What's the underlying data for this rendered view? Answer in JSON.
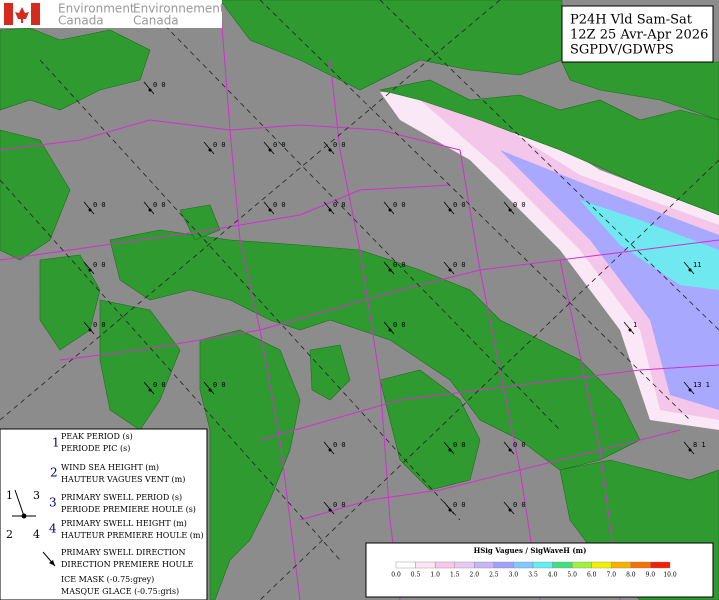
{
  "logo": {
    "english": [
      "Environment",
      "Canada"
    ],
    "french": [
      "Environnement",
      "Canada"
    ]
  },
  "title_box": {
    "lines": [
      "P24H Vld Sam-Sat",
      "12Z 25 Avr-Apr 2026",
      "SGPDV/GDWPS"
    ]
  },
  "legend": {
    "items": [
      {
        "number": "1",
        "lines": [
          "PEAK PERIOD (s)",
          "PERIODE PIC (s)"
        ]
      },
      {
        "number": "2",
        "lines": [
          "WIND SEA HEIGHT (m)",
          "HAUTEUR VAGUES VENT (m)"
        ]
      },
      {
        "number": "3",
        "lines": [
          "PRIMARY SWELL PERIOD (s)",
          "PERIODE PREMIERE HOULE (s)"
        ]
      },
      {
        "number": "4",
        "lines": [
          "PRIMARY SWELL HEIGHT (m)",
          "HAUTEUR PREMIERE HOULE (m)"
        ]
      }
    ],
    "diagram_numbers": [
      "1",
      "3",
      "2",
      "4"
    ],
    "direction": [
      "PRIMARY SWELL DIRECTION",
      "DIRECTION PREMIERE HOULE"
    ],
    "ice_mask": [
      "ICE MASK (-0.75:grey)",
      "MASQUE GLACE (-0.75:gris)"
    ]
  },
  "colorbar": {
    "title": "HSig Vagues / SigWaveH (m)",
    "ticks": [
      "0.0",
      "0.5",
      "1.0",
      "1.5",
      "2.0",
      "2.5",
      "3.0",
      "3.5",
      "4.0",
      "5.0",
      "6.0",
      "7.0",
      "8.0",
      "9.0",
      "10.0"
    ],
    "colors": [
      "#ffffff",
      "#fde6f4",
      "#f8c8ec",
      "#e8c8f4",
      "#c8b4f8",
      "#a0a0ff",
      "#80c8ff",
      "#60f0f0",
      "#40e080",
      "#a0f040",
      "#f0f000",
      "#f8b000",
      "#f87000",
      "#f02000"
    ]
  },
  "stations": [
    "0 0",
    "0 0",
    "0 0",
    "0 0",
    "0 0",
    "0 0",
    "0 0",
    "0 0",
    "0 0",
    "0 0",
    "0 0",
    "0 0",
    "0 0",
    "0 0",
    "0 0",
    "0 0",
    "0 0",
    "0 0",
    "0 0",
    "0 0",
    "0 0",
    "0 0",
    "0 0",
    "0 0",
    "11",
    "13 1",
    "1",
    "8 1"
  ]
}
